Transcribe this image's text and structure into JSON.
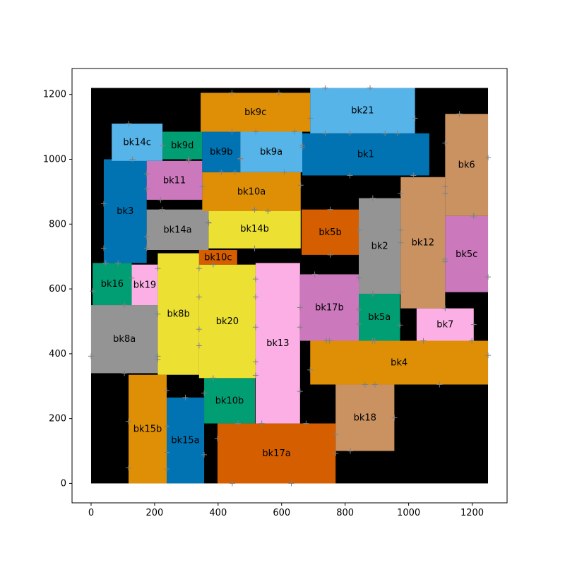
{
  "chart_data": {
    "type": "floorplan",
    "xlim": [
      -60,
      1310
    ],
    "ylim": [
      -60,
      1280
    ],
    "xticks": [
      0,
      200,
      400,
      600,
      800,
      1000,
      1200
    ],
    "yticks": [
      0,
      200,
      400,
      600,
      800,
      1000,
      1200
    ],
    "chip_outline": {
      "x": 0,
      "y": 0,
      "w": 1250,
      "h": 1220,
      "color": "#000000"
    },
    "colors": {
      "blue": "#0173b2",
      "orange": "#de8f05",
      "green": "#029e73",
      "vermilion": "#d55e00",
      "pink": "#cc78bc",
      "tan": "#ca9161",
      "light_pink": "#fbafe4",
      "gray": "#949494",
      "yellow": "#ece133",
      "sky": "#56b4e9"
    },
    "blocks": [
      {
        "name": "bk17a",
        "x": 398,
        "y": 0,
        "w": 372,
        "h": 185,
        "color": "vermilion"
      },
      {
        "name": "bk15b",
        "x": 118,
        "y": 0,
        "w": 120,
        "h": 335,
        "color": "orange"
      },
      {
        "name": "bk15a",
        "x": 238,
        "y": 0,
        "w": 118,
        "h": 265,
        "color": "blue"
      },
      {
        "name": "bk10b",
        "x": 356,
        "y": 185,
        "w": 160,
        "h": 140,
        "color": "green"
      },
      {
        "name": "bk18",
        "x": 770,
        "y": 100,
        "w": 185,
        "h": 205,
        "color": "tan"
      },
      {
        "name": "bk4",
        "x": 690,
        "y": 305,
        "w": 560,
        "h": 135,
        "color": "orange"
      },
      {
        "name": "bk13",
        "x": 518,
        "y": 185,
        "w": 140,
        "h": 495,
        "color": "light_pink"
      },
      {
        "name": "bk8a",
        "x": 0,
        "y": 340,
        "w": 210,
        "h": 210,
        "color": "gray"
      },
      {
        "name": "bk20",
        "x": 340,
        "y": 325,
        "w": 178,
        "h": 350,
        "color": "yellow"
      },
      {
        "name": "bk8b",
        "x": 210,
        "y": 335,
        "w": 130,
        "h": 375,
        "color": "yellow"
      },
      {
        "name": "bk10c",
        "x": 340,
        "y": 675,
        "w": 120,
        "h": 45,
        "color": "vermilion"
      },
      {
        "name": "bk17b",
        "x": 658,
        "y": 440,
        "w": 185,
        "h": 205,
        "color": "pink"
      },
      {
        "name": "bk5a",
        "x": 843,
        "y": 440,
        "w": 130,
        "h": 145,
        "color": "green"
      },
      {
        "name": "bk7",
        "x": 1025,
        "y": 440,
        "w": 180,
        "h": 100,
        "color": "light_pink"
      },
      {
        "name": "bk16",
        "x": 5,
        "y": 550,
        "w": 123,
        "h": 130,
        "color": "green"
      },
      {
        "name": "bk19",
        "x": 128,
        "y": 550,
        "w": 82,
        "h": 125,
        "color": "light_pink"
      },
      {
        "name": "bk3",
        "x": 40,
        "y": 680,
        "w": 135,
        "h": 320,
        "color": "blue"
      },
      {
        "name": "bk14a",
        "x": 175,
        "y": 720,
        "w": 195,
        "h": 125,
        "color": "gray"
      },
      {
        "name": "bk14b",
        "x": 370,
        "y": 725,
        "w": 290,
        "h": 120,
        "color": "yellow"
      },
      {
        "name": "bk5b",
        "x": 663,
        "y": 705,
        "w": 180,
        "h": 140,
        "color": "vermilion"
      },
      {
        "name": "bk2",
        "x": 843,
        "y": 585,
        "w": 132,
        "h": 295,
        "color": "gray"
      },
      {
        "name": "bk12",
        "x": 975,
        "y": 540,
        "w": 140,
        "h": 405,
        "color": "tan"
      },
      {
        "name": "bk5c",
        "x": 1115,
        "y": 590,
        "w": 135,
        "h": 235,
        "color": "pink"
      },
      {
        "name": "bk6",
        "x": 1115,
        "y": 825,
        "w": 135,
        "h": 315,
        "color": "tan"
      },
      {
        "name": "bk11",
        "x": 175,
        "y": 875,
        "w": 175,
        "h": 120,
        "color": "pink"
      },
      {
        "name": "bk10a",
        "x": 350,
        "y": 840,
        "w": 310,
        "h": 120,
        "color": "orange"
      },
      {
        "name": "bk14c",
        "x": 65,
        "y": 995,
        "w": 160,
        "h": 115,
        "color": "sky"
      },
      {
        "name": "bk9d",
        "x": 225,
        "y": 1000,
        "w": 125,
        "h": 85,
        "color": "green"
      },
      {
        "name": "bk9b",
        "x": 350,
        "y": 960,
        "w": 120,
        "h": 125,
        "color": "blue"
      },
      {
        "name": "bk9a",
        "x": 470,
        "y": 960,
        "w": 195,
        "h": 125,
        "color": "sky"
      },
      {
        "name": "bk1",
        "x": 665,
        "y": 950,
        "w": 400,
        "h": 130,
        "color": "blue"
      },
      {
        "name": "bk9c",
        "x": 345,
        "y": 1085,
        "w": 345,
        "h": 120,
        "color": "orange"
      },
      {
        "name": "bk21",
        "x": 690,
        "y": 1080,
        "w": 330,
        "h": 140,
        "color": "sky"
      }
    ]
  }
}
